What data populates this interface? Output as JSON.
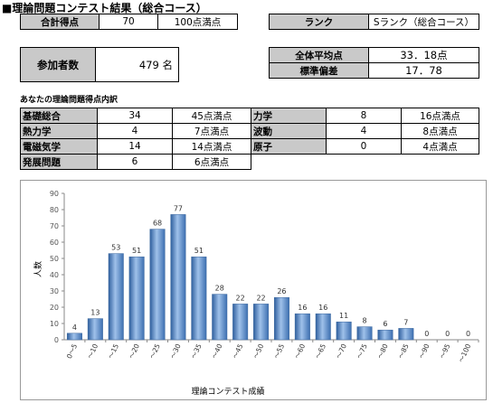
{
  "heading": "■理論問題コンテスト結果（総合コース）",
  "score_table": {
    "label": "合計得点",
    "value": "70",
    "max": "100点満点"
  },
  "rank_table": {
    "label": "ランク",
    "value": "Sランク（総合コース）"
  },
  "participants_table": {
    "label": "参加者数",
    "value": "479 名"
  },
  "stats_table": [
    {
      "label": "全体平均点",
      "value": "33．18点"
    },
    {
      "label": "標準偏差",
      "value": "17．78"
    }
  ],
  "breakdown_title": "あなたの理論問題得点内訳",
  "breakdown": [
    [
      {
        "label": "基礎総合",
        "score": "34",
        "max": "45点満点"
      },
      {
        "label": "力学",
        "score": "8",
        "max": "16点満点"
      }
    ],
    [
      {
        "label": "熱力学",
        "score": "4",
        "max": "7点満点"
      },
      {
        "label": "波動",
        "score": "4",
        "max": "8点満点"
      }
    ],
    [
      {
        "label": "電磁気学",
        "score": "14",
        "max": "14点満点"
      },
      {
        "label": "原子",
        "score": "0",
        "max": "4点満点"
      }
    ],
    [
      {
        "label": "発展問題",
        "score": "6",
        "max": "6点満点"
      }
    ]
  ],
  "chart_data": {
    "type": "bar",
    "categories": [
      "0～5",
      "～10",
      "～15",
      "～20",
      "～25",
      "～30",
      "～35",
      "～40",
      "～45",
      "～50",
      "～55",
      "～60",
      "～65",
      "～70",
      "～75",
      "～80",
      "～85",
      "～90",
      "～95",
      "～100"
    ],
    "values": [
      4,
      13,
      53,
      51,
      68,
      77,
      51,
      28,
      22,
      22,
      26,
      16,
      16,
      11,
      8,
      6,
      7,
      0,
      0,
      0
    ],
    "xlabel": "理論コンテスト成績",
    "ylabel": "人数",
    "ylim": [
      0,
      90
    ],
    "yticks": [
      "0",
      "10",
      "20",
      "30",
      "40",
      "50",
      "60",
      "70",
      "80",
      "90"
    ],
    "grid": false,
    "bar_color": "#5b8fd0"
  }
}
